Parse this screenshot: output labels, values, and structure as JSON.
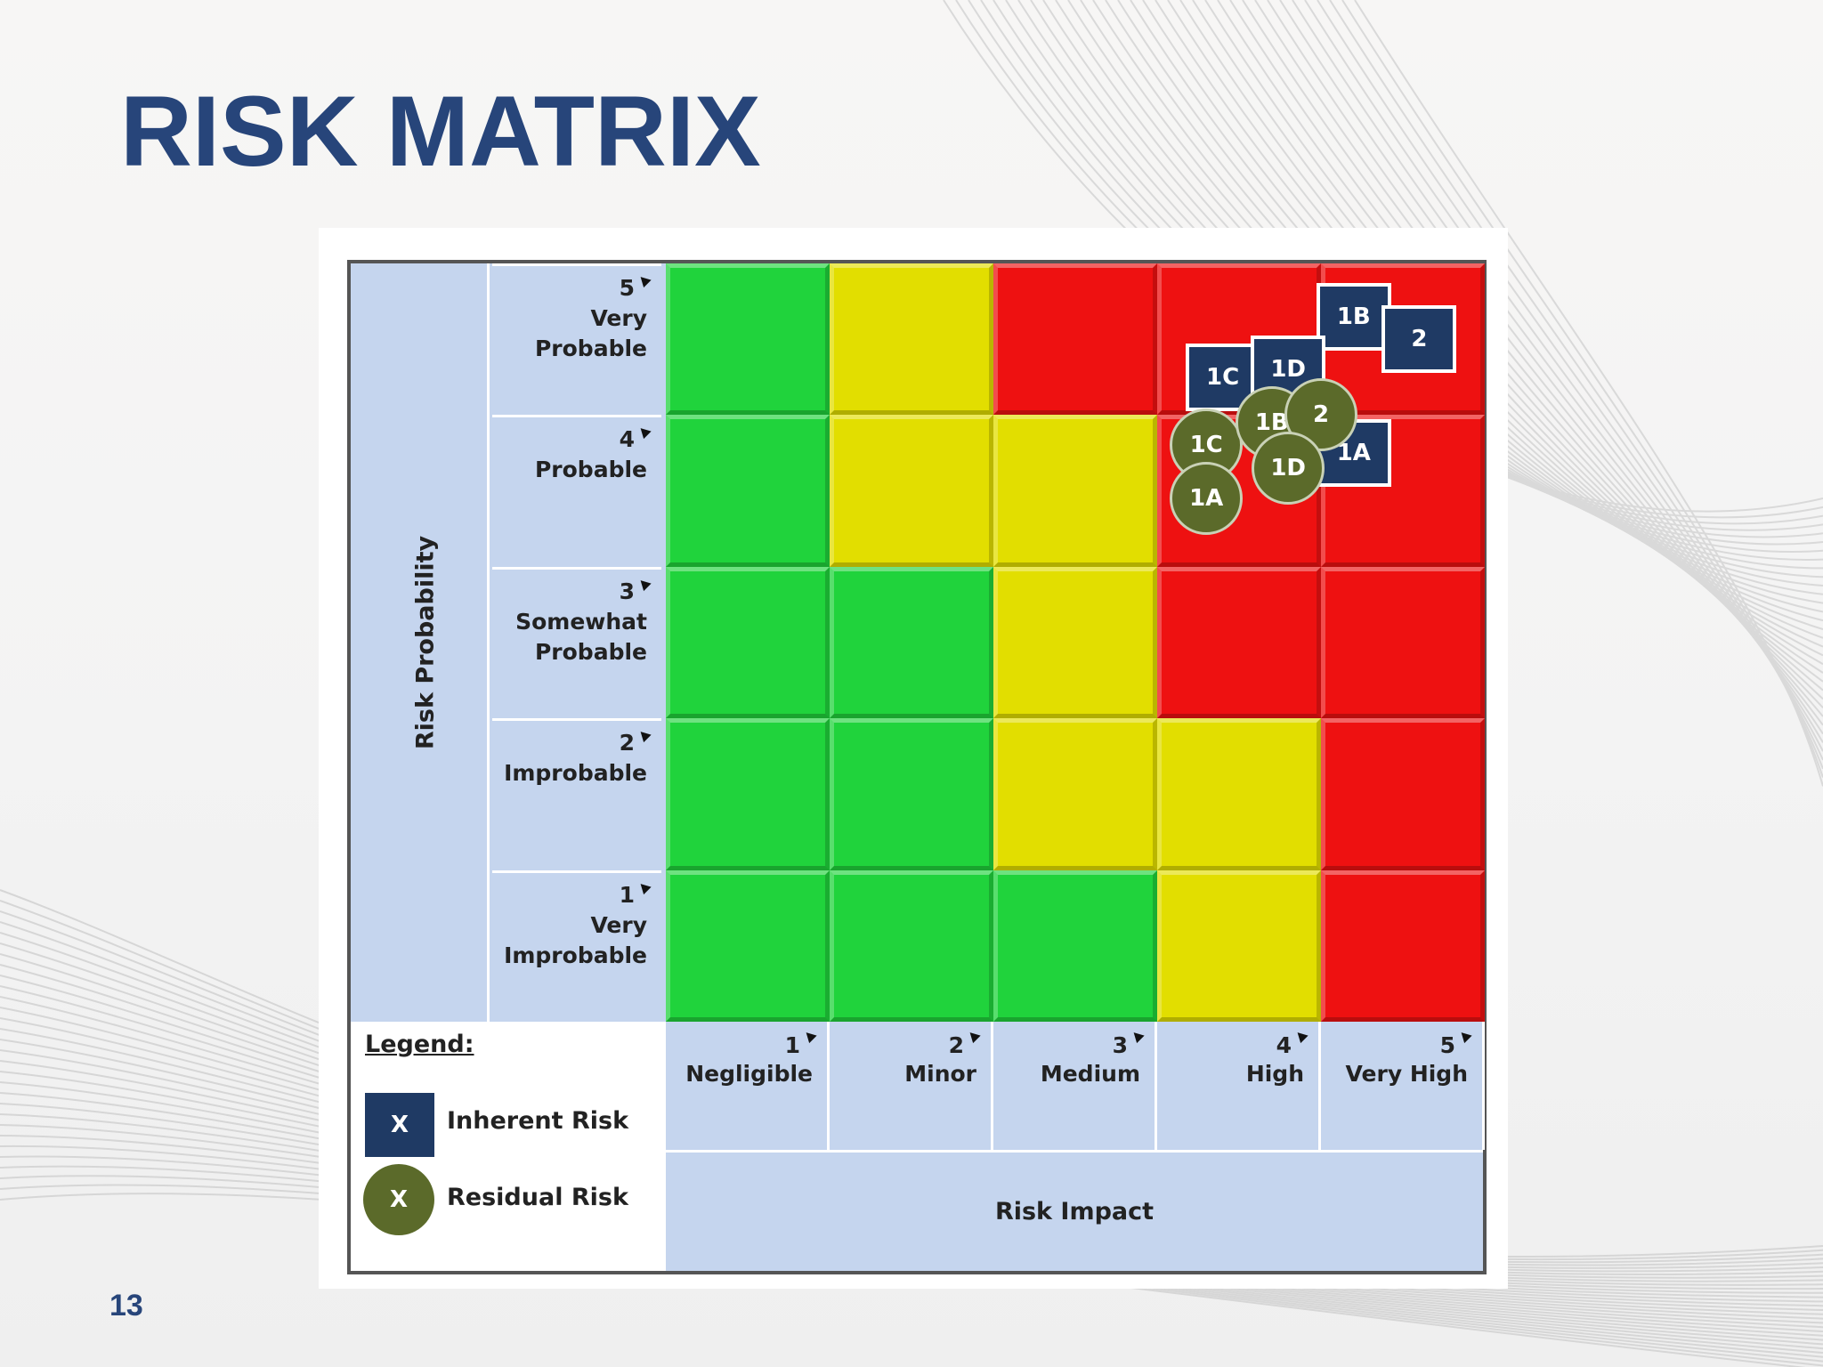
{
  "slide": {
    "title": "RISK MATRIX",
    "page_number": "13"
  },
  "matrix": {
    "y_axis_title": "Risk Probability",
    "x_axis_title": "Risk Impact",
    "probability_levels": [
      {
        "num": "5",
        "name": "Very Probable"
      },
      {
        "num": "4",
        "name": "Probable"
      },
      {
        "num": "3",
        "name": "Somewhat Probable"
      },
      {
        "num": "2",
        "name": "Improbable"
      },
      {
        "num": "1",
        "name": "Very Improbable"
      }
    ],
    "impact_levels": [
      {
        "num": "1",
        "name": "Negligible"
      },
      {
        "num": "2",
        "name": "Minor"
      },
      {
        "num": "3",
        "name": "Medium"
      },
      {
        "num": "4",
        "name": "High"
      },
      {
        "num": "5",
        "name": "Very High"
      }
    ],
    "cell_colors_by_probability": {
      "5": [
        "green",
        "yellow",
        "red",
        "red",
        "red"
      ],
      "4": [
        "green",
        "yellow",
        "yellow",
        "red",
        "red"
      ],
      "3": [
        "green",
        "green",
        "yellow",
        "red",
        "red"
      ],
      "2": [
        "green",
        "green",
        "yellow",
        "yellow",
        "red"
      ],
      "1": [
        "green",
        "green",
        "green",
        "yellow",
        "red"
      ]
    },
    "palette": {
      "green": "#20d33c",
      "yellow": "#e2de00",
      "red": "#ee1111",
      "inherent": "#1f3a64",
      "residual": "#5b6a2a"
    }
  },
  "legend": {
    "title": "Legend:",
    "inherent_symbol": "X",
    "inherent_label": "Inherent Risk",
    "residual_symbol": "X",
    "residual_label": "Residual Risk"
  },
  "inherent_risks": [
    {
      "label": "1B",
      "impact": 4.7,
      "probability": 5.15
    },
    {
      "label": "2",
      "impact": 5.1,
      "probability": 5.0
    },
    {
      "label": "1C",
      "impact": 3.9,
      "probability": 4.75
    },
    {
      "label": "1D",
      "impact": 4.3,
      "probability": 4.8
    },
    {
      "label": "1A",
      "impact": 4.7,
      "probability": 4.25
    }
  ],
  "residual_risks": [
    {
      "label": "1C",
      "impact": 3.8,
      "probability": 4.3
    },
    {
      "label": "1B",
      "impact": 4.2,
      "probability": 4.45
    },
    {
      "label": "2",
      "impact": 4.5,
      "probability": 4.5
    },
    {
      "label": "1D",
      "impact": 4.3,
      "probability": 4.15
    },
    {
      "label": "1A",
      "impact": 3.8,
      "probability": 3.95
    }
  ]
}
